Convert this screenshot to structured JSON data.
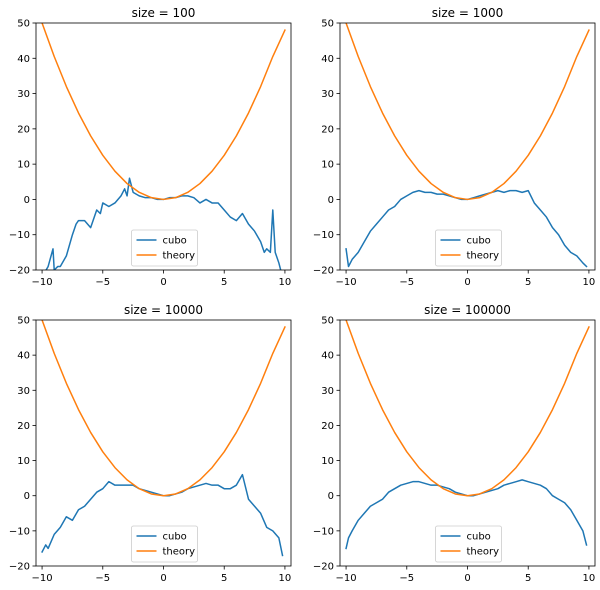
{
  "chart_data": [
    {
      "type": "line",
      "title": "size = 100",
      "xlim": [
        -10.5,
        10.5
      ],
      "ylim": [
        -20,
        50
      ],
      "xticks": [
        -10,
        -5,
        0,
        5,
        10
      ],
      "yticks": [
        -20,
        -10,
        0,
        10,
        20,
        30,
        40,
        50
      ],
      "legend_position": "lower-center",
      "series": [
        {
          "name": "cubo",
          "color": "#1f77b4",
          "x": [
            -10,
            -9.5,
            -9.1,
            -9,
            -8.7,
            -8.5,
            -8,
            -7.5,
            -7.2,
            -7,
            -6.5,
            -6,
            -5.5,
            -5.2,
            -5,
            -4.5,
            -4,
            -3.5,
            -3.2,
            -3,
            -2.8,
            -2.5,
            -2,
            -1.5,
            -1,
            -0.5,
            0,
            0.5,
            1,
            1.5,
            2,
            2.5,
            3,
            3.5,
            4,
            4.5,
            5,
            5.5,
            6,
            6.5,
            7,
            7.5,
            8,
            8.3,
            8.5,
            8.8,
            9,
            9.2,
            9.5,
            9.8
          ],
          "y": [
            -22,
            -19,
            -14,
            -20,
            -19,
            -19,
            -16,
            -10,
            -7,
            -6,
            -6,
            -8,
            -3,
            -4,
            -1,
            -2,
            -1,
            1,
            3,
            1,
            6,
            2,
            1,
            0.5,
            0.5,
            0,
            0,
            0.5,
            0.5,
            1,
            1,
            0.5,
            -1,
            0,
            -1,
            -1,
            -3,
            -5,
            -6,
            -4,
            -7,
            -9,
            -12,
            -15,
            -14,
            -15,
            -3,
            -15,
            -18,
            -22
          ]
        },
        {
          "name": "theory",
          "color": "#ff7f0e",
          "x": [
            -10,
            -9,
            -8,
            -7,
            -6,
            -5,
            -4,
            -3,
            -2,
            -1,
            0,
            1,
            2,
            3,
            4,
            5,
            6,
            7,
            8,
            9,
            10
          ],
          "y": [
            50,
            40.5,
            32,
            24.5,
            18,
            12.5,
            8,
            4.5,
            2,
            0.5,
            0,
            0.5,
            2,
            4.5,
            8,
            12.5,
            18,
            24.5,
            32,
            40.5,
            48
          ]
        }
      ]
    },
    {
      "type": "line",
      "title": "size = 1000",
      "xlim": [
        -10.5,
        10.5
      ],
      "ylim": [
        -20,
        50
      ],
      "xticks": [
        -10,
        -5,
        0,
        5,
        10
      ],
      "yticks": [
        -20,
        -10,
        0,
        10,
        20,
        30,
        40,
        50
      ],
      "legend_position": "lower-center",
      "series": [
        {
          "name": "cubo",
          "color": "#1f77b4",
          "x": [
            -10,
            -9.8,
            -9.5,
            -9,
            -8.5,
            -8,
            -7.5,
            -7,
            -6.5,
            -6,
            -5.5,
            -5,
            -4.5,
            -4,
            -3.5,
            -3,
            -2.5,
            -2,
            -1.5,
            -1,
            -0.5,
            0,
            0.5,
            1,
            1.5,
            2,
            2.5,
            3,
            3.5,
            4,
            4.5,
            5,
            5.5,
            6,
            6.5,
            7,
            7.5,
            8,
            8.5,
            9,
            9.5,
            9.8
          ],
          "y": [
            -14,
            -19,
            -17,
            -15,
            -12,
            -9,
            -7,
            -5,
            -3,
            -2,
            0,
            1,
            2,
            2.5,
            2,
            2,
            1.5,
            1.5,
            1,
            0.5,
            0,
            0,
            0.5,
            1,
            1.5,
            2,
            2.5,
            2,
            2.5,
            2.5,
            2,
            2.5,
            -1,
            -3,
            -5,
            -8,
            -10,
            -13,
            -15,
            -16,
            -18,
            -19
          ]
        },
        {
          "name": "theory",
          "color": "#ff7f0e",
          "x": [
            -10,
            -9,
            -8,
            -7,
            -6,
            -5,
            -4,
            -3,
            -2,
            -1,
            0,
            1,
            2,
            3,
            4,
            5,
            6,
            7,
            8,
            9,
            10
          ],
          "y": [
            50,
            40.5,
            32,
            24.5,
            18,
            12.5,
            8,
            4.5,
            2,
            0.5,
            0,
            0.5,
            2,
            4.5,
            8,
            12.5,
            18,
            24.5,
            32,
            40.5,
            48
          ]
        }
      ]
    },
    {
      "type": "line",
      "title": "size = 10000",
      "xlim": [
        -10.5,
        10.5
      ],
      "ylim": [
        -20,
        50
      ],
      "xticks": [
        -10,
        -5,
        0,
        5,
        10
      ],
      "yticks": [
        -20,
        -10,
        0,
        10,
        20,
        30,
        40,
        50
      ],
      "legend_position": "lower-center",
      "series": [
        {
          "name": "cubo",
          "color": "#1f77b4",
          "x": [
            -10,
            -9.7,
            -9.5,
            -9,
            -8.5,
            -8,
            -7.5,
            -7,
            -6.5,
            -6,
            -5.5,
            -5,
            -4.5,
            -4,
            -3.5,
            -3,
            -2.5,
            -2,
            -1.5,
            -1,
            -0.5,
            0,
            0.5,
            1,
            1.5,
            2,
            2.5,
            3,
            3.5,
            4,
            4.5,
            5,
            5.5,
            6,
            6.5,
            7,
            7.5,
            8,
            8.5,
            9,
            9.5,
            9.8
          ],
          "y": [
            -16,
            -14,
            -15,
            -11,
            -9,
            -6,
            -7,
            -4,
            -3,
            -1,
            1,
            2,
            4,
            3,
            3,
            3,
            3,
            2,
            1.5,
            1,
            0.5,
            0,
            0,
            0.5,
            1,
            2,
            2.5,
            3,
            3.5,
            3,
            3,
            2,
            2,
            3,
            6,
            -1,
            -3,
            -5,
            -9,
            -10,
            -12,
            -17
          ]
        },
        {
          "name": "theory",
          "color": "#ff7f0e",
          "x": [
            -10,
            -9,
            -8,
            -7,
            -6,
            -5,
            -4,
            -3,
            -2,
            -1,
            0,
            1,
            2,
            3,
            4,
            5,
            6,
            7,
            8,
            9,
            10
          ],
          "y": [
            50,
            40.5,
            32,
            24.5,
            18,
            12.5,
            8,
            4.5,
            2,
            0.5,
            0,
            0.5,
            2,
            4.5,
            8,
            12.5,
            18,
            24.5,
            32,
            40.5,
            48
          ]
        }
      ]
    },
    {
      "type": "line",
      "title": "size = 100000",
      "xlim": [
        -10.5,
        10.5
      ],
      "ylim": [
        -20,
        50
      ],
      "xticks": [
        -10,
        -5,
        0,
        5,
        10
      ],
      "yticks": [
        -20,
        -10,
        0,
        10,
        20,
        30,
        40,
        50
      ],
      "legend_position": "lower-center",
      "series": [
        {
          "name": "cubo",
          "color": "#1f77b4",
          "x": [
            -10,
            -9.8,
            -9.5,
            -9,
            -8.5,
            -8,
            -7.5,
            -7,
            -6.5,
            -6,
            -5.5,
            -5,
            -4.5,
            -4,
            -3.5,
            -3,
            -2.5,
            -2,
            -1.5,
            -1,
            -0.5,
            0,
            0.5,
            1,
            1.5,
            2,
            2.5,
            3,
            3.5,
            4,
            4.5,
            5,
            5.5,
            6,
            6.5,
            7,
            7.5,
            8,
            8.5,
            9,
            9.5,
            9.8
          ],
          "y": [
            -15,
            -12,
            -10,
            -7,
            -5,
            -3,
            -2,
            -1,
            1,
            2,
            3,
            3.5,
            4,
            4,
            3.5,
            3,
            3,
            2.5,
            2,
            1,
            0.5,
            0,
            0,
            0.5,
            1,
            1.5,
            2,
            3,
            3.5,
            4,
            4.5,
            4,
            3.5,
            3,
            2,
            0,
            -1,
            -2,
            -4,
            -7,
            -10,
            -14
          ]
        },
        {
          "name": "theory",
          "color": "#ff7f0e",
          "x": [
            -10,
            -9,
            -8,
            -7,
            -6,
            -5,
            -4,
            -3,
            -2,
            -1,
            0,
            1,
            2,
            3,
            4,
            5,
            6,
            7,
            8,
            9,
            10
          ],
          "y": [
            50,
            40.5,
            32,
            24.5,
            18,
            12.5,
            8,
            4.5,
            2,
            0.5,
            0,
            0.5,
            2,
            4.5,
            8,
            12.5,
            18,
            24.5,
            32,
            40.5,
            48
          ]
        }
      ]
    }
  ]
}
